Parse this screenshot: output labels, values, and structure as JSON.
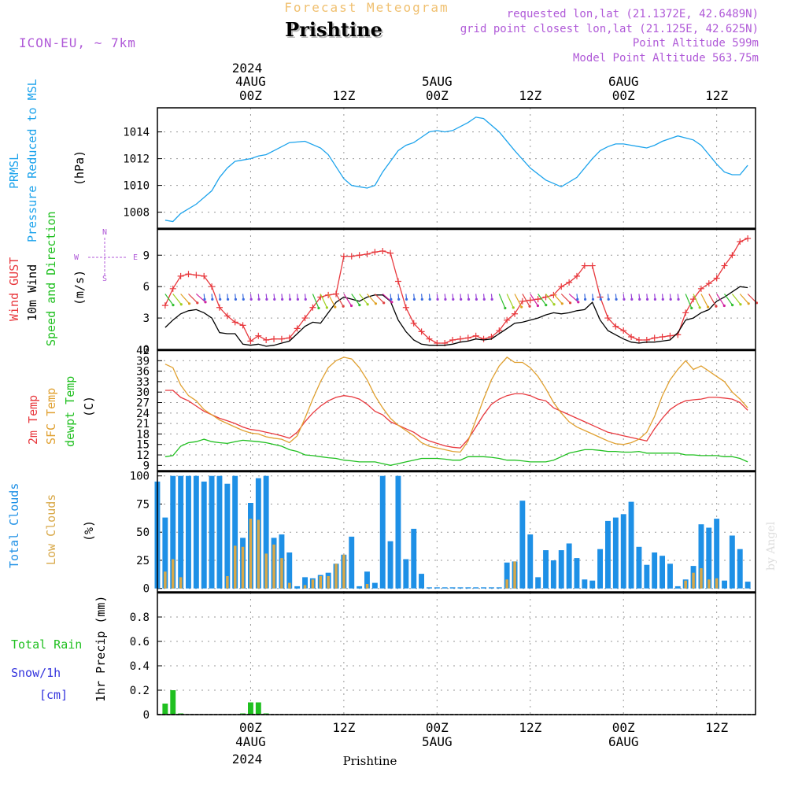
{
  "header": {
    "subtitle": "Forecast Meteogram",
    "title": "Prishtine",
    "model": "ICON-EU, ~ 7km",
    "requested": "requested lon,lat (21.1372E, 42.6489N)",
    "gridpoint": "grid point closest lon,lat (21.125E, 42.625N)",
    "point_alt": "Point Altitude 599m",
    "model_alt": "Model Point Altitude 563.75m",
    "footer_station": "Prishtine",
    "watermark": "by Angel"
  },
  "time_axis": {
    "top_year": "2024",
    "bottom_year": "2024",
    "ticks": [
      {
        "h": 0,
        "label": "00Z",
        "date": "4AUG"
      },
      {
        "h": 12,
        "label": "12Z",
        "date": ""
      },
      {
        "h": 24,
        "label": "00Z",
        "date": "5AUG"
      },
      {
        "h": 36,
        "label": "12Z",
        "date": ""
      },
      {
        "h": 48,
        "label": "00Z",
        "date": "6AUG"
      },
      {
        "h": 60,
        "label": "12Z",
        "date": ""
      }
    ],
    "range_hours": [
      -12,
      65
    ]
  },
  "panel_labels": {
    "pressure": {
      "line1": "PRMSL",
      "line2": "Pressure Reduced to MSL",
      "unit": "(hPa)"
    },
    "wind": {
      "gust": "Wind GUST",
      "wind10": "10m Wind",
      "dir": "Speed and Direction",
      "unit": "(m/s)",
      "compass_n": "N",
      "compass_s": "S",
      "compass_w": "W",
      "compass_e": "E"
    },
    "temp": {
      "t2m": "2m Temp",
      "sfc": "SFC Temp",
      "dew": "dewpt Temp",
      "unit": "(C)"
    },
    "clouds": {
      "total": "Total Clouds",
      "low": "Low Clouds",
      "unit": "(%)"
    },
    "precip": {
      "rain": "Total  Rain",
      "snow": "Snow/1h",
      "snow_unit": "[cm]",
      "ylabel": "1hr Precip (mm)"
    }
  },
  "colors": {
    "pressure": "#1ca3ec",
    "gust": "#e8383d",
    "wind10": "#000000",
    "t2m": "#e8383d",
    "sfc": "#e0a030",
    "dew": "#20c020",
    "total_clouds": "#1e90e6",
    "low_clouds": "#d8a848",
    "rain": "#20c020",
    "snow": "#3333dd",
    "meta": "#b05ad8",
    "subtitle": "#f0c070"
  },
  "chart_data": [
    {
      "type": "line",
      "name": "pressure",
      "ylabel": "(hPa)",
      "ylim": [
        1006.8,
        1015.8
      ],
      "yticks": [
        1008,
        1010,
        1012,
        1014
      ],
      "grid": true,
      "x_hours": [
        -11,
        -10,
        -9,
        -7,
        -5,
        -4,
        -3,
        -2,
        -1,
        0,
        1,
        2,
        3,
        5,
        7,
        9,
        10,
        11,
        12,
        13,
        14,
        15,
        16,
        17,
        18,
        19,
        20,
        21,
        22,
        23,
        24,
        25,
        26,
        28,
        29,
        30,
        32,
        34,
        36,
        38,
        40,
        42,
        44,
        45,
        46,
        47,
        48,
        49,
        50,
        51,
        52,
        53,
        55,
        57,
        58,
        59,
        60,
        61,
        62,
        63,
        64
      ],
      "series": [
        {
          "values": [
            1007.4,
            1007.3,
            1007.9,
            1008.6,
            1009.6,
            1010.6,
            1011.3,
            1011.8,
            1011.9,
            1012.0,
            1012.2,
            1012.3,
            1012.6,
            1013.2,
            1013.3,
            1012.8,
            1012.3,
            1011.4,
            1010.5,
            1010.0,
            1009.9,
            1009.8,
            1010.0,
            1011.0,
            1011.8,
            1012.6,
            1013.0,
            1013.2,
            1013.6,
            1014.0,
            1014.1,
            1014.0,
            1014.1,
            1014.7,
            1015.1,
            1015.0,
            1014.0,
            1012.6,
            1011.3,
            1010.4,
            1009.9,
            1010.6,
            1012.0,
            1012.6,
            1012.9,
            1013.1,
            1013.1,
            1013.0,
            1012.9,
            1012.8,
            1013.0,
            1013.3,
            1013.7,
            1013.4,
            1013.0,
            1012.3,
            1011.6,
            1011.0,
            1010.8,
            1010.8,
            1011.5
          ]
        }
      ]
    },
    {
      "type": "line",
      "name": "wind",
      "ylabel": "(m/s)",
      "ylim": [
        0,
        11.5
      ],
      "yticks": [
        0,
        3,
        6,
        9
      ],
      "grid": true,
      "x_hours": [
        -11,
        -10,
        -9,
        -8,
        -7,
        -6,
        -5,
        -4,
        -3,
        -2,
        -1,
        0,
        1,
        2,
        3,
        4,
        5,
        6,
        7,
        8,
        9,
        10,
        11,
        12,
        13,
        14,
        15,
        16,
        17,
        18,
        19,
        20,
        21,
        22,
        23,
        24,
        25,
        26,
        27,
        28,
        29,
        30,
        31,
        32,
        33,
        34,
        35,
        36,
        37,
        38,
        39,
        40,
        41,
        42,
        43,
        44,
        45,
        46,
        47,
        48,
        49,
        50,
        51,
        52,
        53,
        54,
        55,
        56,
        57,
        58,
        59,
        60,
        61,
        62,
        63,
        64
      ],
      "series": [
        {
          "name": "Wind GUST",
          "values": [
            4.2,
            5.8,
            7.0,
            7.2,
            7.1,
            7.0,
            6.0,
            4.0,
            3.2,
            2.6,
            2.3,
            0.8,
            1.3,
            0.9,
            1.0,
            1.0,
            1.1,
            2.0,
            3.0,
            4.0,
            5.0,
            5.2,
            5.3,
            8.9,
            8.9,
            9.0,
            9.1,
            9.3,
            9.4,
            9.2,
            6.5,
            4.0,
            2.5,
            1.7,
            1.0,
            0.6,
            0.6,
            0.9,
            1.0,
            1.1,
            1.3,
            1.0,
            1.2,
            1.8,
            2.8,
            3.4,
            4.6,
            4.7,
            4.8,
            5.0,
            5.2,
            6.0,
            6.4,
            7.0,
            8.0,
            8.0,
            5.0,
            3.0,
            2.2,
            1.8,
            1.2,
            0.9,
            0.9,
            1.1,
            1.2,
            1.3,
            1.4,
            3.5,
            4.8,
            5.8,
            6.3,
            6.8,
            8.0,
            9.0,
            10.3,
            10.6
          ]
        },
        {
          "name": "10m Wind",
          "values": [
            2.1,
            2.8,
            3.4,
            3.7,
            3.8,
            3.5,
            3.0,
            1.6,
            1.5,
            1.5,
            0.5,
            0.4,
            0.5,
            0.3,
            0.4,
            0.6,
            0.8,
            1.5,
            2.2,
            2.6,
            2.5,
            3.5,
            4.5,
            5.0,
            4.8,
            4.6,
            5.0,
            5.2,
            5.2,
            4.6,
            2.8,
            1.7,
            0.9,
            0.5,
            0.4,
            0.4,
            0.4,
            0.5,
            0.7,
            0.8,
            1.0,
            0.9,
            1.0,
            1.5,
            2.0,
            2.5,
            2.6,
            2.8,
            3.0,
            3.3,
            3.5,
            3.4,
            3.5,
            3.7,
            3.8,
            4.5,
            2.8,
            1.8,
            1.4,
            1.0,
            0.7,
            0.6,
            0.7,
            0.7,
            0.8,
            0.9,
            1.6,
            2.8,
            3.0,
            3.5,
            3.8,
            4.6,
            5.0,
            5.5,
            6.0,
            5.9
          ]
        }
      ]
    },
    {
      "type": "line",
      "name": "temperature",
      "ylabel": "(C)",
      "ylim": [
        7.5,
        42
      ],
      "yticks": [
        9,
        12,
        15,
        18,
        21,
        24,
        27,
        30,
        33,
        36,
        39,
        42
      ],
      "grid": true,
      "x_hours": [
        -11,
        -10,
        -9,
        -8,
        -7,
        -6,
        -5,
        -4,
        -3,
        -2,
        -1,
        0,
        1,
        2,
        3,
        4,
        5,
        6,
        7,
        8,
        9,
        10,
        11,
        12,
        13,
        14,
        15,
        16,
        17,
        18,
        19,
        20,
        21,
        22,
        23,
        24,
        25,
        26,
        27,
        28,
        29,
        30,
        31,
        32,
        33,
        34,
        35,
        36,
        37,
        38,
        39,
        40,
        41,
        42,
        43,
        44,
        45,
        46,
        47,
        48,
        49,
        50,
        51,
        52,
        53,
        54,
        55,
        56,
        57,
        58,
        59,
        60,
        61,
        62,
        63,
        64
      ],
      "series": [
        {
          "name": "2m Temp",
          "values": [
            30.5,
            30.5,
            28.5,
            27.5,
            26.0,
            24.5,
            23.5,
            22.5,
            21.8,
            21.0,
            20.0,
            19.3,
            19.0,
            18.5,
            18.0,
            17.5,
            16.8,
            18.5,
            21.5,
            24.0,
            26.0,
            27.5,
            28.5,
            29.0,
            28.7,
            28.0,
            26.5,
            24.5,
            23.5,
            21.5,
            20.5,
            19.5,
            18.5,
            17.0,
            16.0,
            15.3,
            14.6,
            14.2,
            14.0,
            16.5,
            20.0,
            23.5,
            26.5,
            28.0,
            29.0,
            29.5,
            29.5,
            29.0,
            28.0,
            27.5,
            25.5,
            24.5,
            23.5,
            22.5,
            21.5,
            20.5,
            19.5,
            18.5,
            18.0,
            17.5,
            17.0,
            16.5,
            16.0,
            19.5,
            22.5,
            25.0,
            26.5,
            27.5,
            27.8,
            28.0,
            28.5,
            28.5,
            28.3,
            28.0,
            27.0,
            24.8
          ]
        },
        {
          "name": "SFC Temp",
          "values": [
            38.0,
            37.0,
            32.0,
            29.0,
            27.5,
            25.0,
            23.5,
            22.0,
            21.0,
            20.0,
            19.0,
            18.3,
            18.0,
            17.2,
            16.8,
            16.5,
            15.5,
            17.5,
            22.5,
            28.0,
            33.0,
            37.0,
            39.0,
            40.0,
            39.5,
            37.0,
            33.5,
            29.0,
            25.5,
            22.5,
            20.5,
            19.0,
            17.5,
            15.5,
            14.5,
            14.0,
            13.5,
            13.0,
            12.8,
            16.0,
            22.0,
            28.0,
            33.5,
            37.5,
            40.0,
            38.5,
            38.5,
            37.0,
            34.5,
            31.0,
            27.0,
            24.0,
            21.5,
            20.0,
            19.0,
            18.0,
            17.0,
            16.0,
            15.2,
            15.0,
            15.5,
            16.5,
            18.5,
            23.0,
            29.0,
            33.5,
            36.5,
            39.0,
            36.5,
            37.5,
            36.0,
            34.5,
            33.0,
            30.0,
            28.0,
            25.5
          ]
        },
        {
          "name": "dewpt Temp",
          "values": [
            11.5,
            11.8,
            14.5,
            15.5,
            15.8,
            16.5,
            15.8,
            15.5,
            15.3,
            15.8,
            16.2,
            16.0,
            15.8,
            15.5,
            15.0,
            14.5,
            13.5,
            13.0,
            12.0,
            11.8,
            11.5,
            11.2,
            11.0,
            10.5,
            10.3,
            10.0,
            10.0,
            10.0,
            9.5,
            9.0,
            9.5,
            10.0,
            10.5,
            11.0,
            11.0,
            11.0,
            10.8,
            10.5,
            10.5,
            11.5,
            11.5,
            11.5,
            11.3,
            11.0,
            10.5,
            10.5,
            10.3,
            10.0,
            10.0,
            10.0,
            10.5,
            11.5,
            12.5,
            13.0,
            13.5,
            13.5,
            13.3,
            13.0,
            13.0,
            12.8,
            12.8,
            13.0,
            12.5,
            12.5,
            12.5,
            12.5,
            12.5,
            12.0,
            12.0,
            11.8,
            11.8,
            11.8,
            11.5,
            11.5,
            11.0,
            10.0
          ]
        }
      ]
    },
    {
      "type": "bar",
      "name": "clouds",
      "ylabel": "(%)",
      "ylim": [
        -3,
        104
      ],
      "yticks": [
        0,
        25,
        50,
        75,
        100
      ],
      "grid": true,
      "x_hours": [
        -12,
        -11,
        -10,
        -9,
        -8,
        -7,
        -6,
        -5,
        -4,
        -3,
        -2,
        -1,
        0,
        1,
        2,
        3,
        4,
        5,
        6,
        7,
        8,
        9,
        10,
        11,
        12,
        13,
        14,
        15,
        16,
        17,
        18,
        19,
        20,
        21,
        22,
        23,
        24,
        25,
        26,
        27,
        28,
        29,
        30,
        31,
        32,
        33,
        34,
        35,
        36,
        37,
        38,
        39,
        40,
        41,
        42,
        43,
        44,
        45,
        46,
        47,
        48,
        49,
        50,
        51,
        52,
        53,
        54,
        55,
        56,
        57,
        58,
        59,
        60,
        61,
        62,
        63,
        64
      ],
      "series": [
        {
          "name": "Total Clouds",
          "values": [
            95,
            63,
            100,
            100,
            100,
            100,
            95,
            100,
            100,
            93,
            100,
            45,
            76,
            98,
            100,
            45,
            48,
            32,
            2,
            10,
            9,
            12,
            14,
            22,
            30,
            46,
            2,
            15,
            5,
            100,
            42,
            100,
            26,
            53,
            13,
            1,
            1,
            1,
            1,
            1,
            1,
            1,
            1,
            1,
            1,
            23,
            24,
            78,
            48,
            10,
            34,
            25,
            34,
            40,
            27,
            8,
            7,
            35,
            60,
            63,
            66,
            77,
            37,
            21,
            32,
            29,
            22,
            2,
            8,
            20,
            57,
            54,
            62,
            7,
            47,
            35,
            6
          ]
        },
        {
          "name": "Low Clouds",
          "values": [
            0,
            15,
            26,
            10,
            0,
            0,
            0,
            0,
            0,
            11,
            38,
            37,
            62,
            61,
            31,
            39,
            27,
            5,
            0,
            3,
            8,
            11,
            11,
            22,
            30,
            0,
            0,
            4,
            0,
            0,
            0,
            0,
            0,
            0,
            0,
            0,
            0,
            0,
            0,
            0,
            0,
            0,
            0,
            0,
            0,
            8,
            24,
            0,
            0,
            0,
            0,
            0,
            0,
            0,
            0,
            0,
            0,
            0,
            0,
            0,
            0,
            0,
            0,
            0,
            0,
            0,
            0,
            0,
            7,
            14,
            18,
            8,
            9,
            0,
            0,
            0,
            0
          ]
        }
      ]
    },
    {
      "type": "bar",
      "name": "precip",
      "ylabel": "1hr Precip (mm)",
      "ylim": [
        0,
        1.0
      ],
      "yticks": [
        0,
        0.2,
        0.4,
        0.6,
        0.8
      ],
      "grid": true,
      "x_hours": [
        -11,
        -10,
        -9,
        -1,
        0,
        1,
        2,
        3
      ],
      "series": [
        {
          "name": "Total Rain",
          "values": [
            0.09,
            0.2,
            0.01,
            0.01,
            0.1,
            0.1,
            0.01,
            0.0
          ]
        }
      ]
    }
  ]
}
